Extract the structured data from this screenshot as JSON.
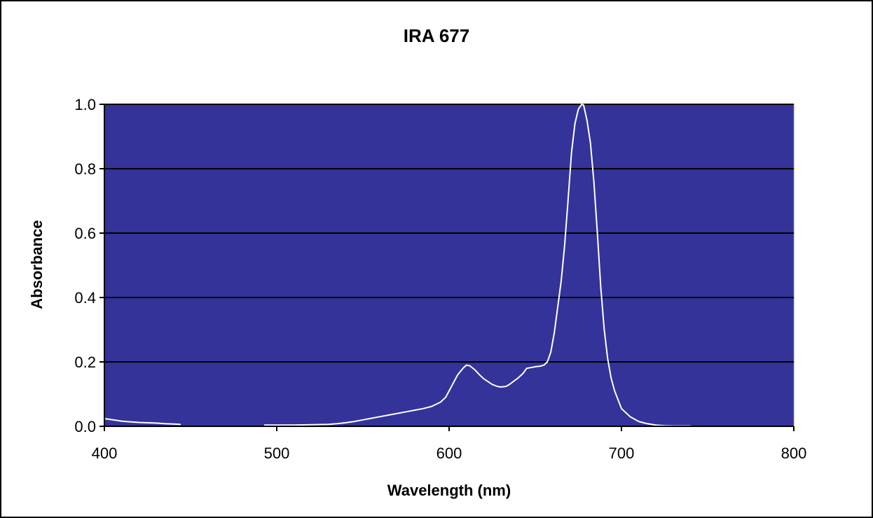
{
  "chart_data": {
    "type": "line",
    "title": "IRA 677",
    "xlabel": "Wavelength (nm)",
    "ylabel": "Absorbance",
    "xlim": [
      400,
      800
    ],
    "ylim": [
      0,
      1.0
    ],
    "x_ticks": [
      "400",
      "500",
      "600",
      "700",
      "800"
    ],
    "y_ticks": [
      "0.0",
      "0.2",
      "0.4",
      "0.6",
      "0.8",
      "1.0"
    ],
    "grid": "horizontal",
    "legend": "none",
    "colors": {
      "plot_background": "#333399",
      "line": "#ffffff",
      "gridline": "#000000"
    },
    "series": [
      {
        "segments": [
          {
            "x": [
              400,
              405,
              410,
              415,
              420,
              430,
              435,
              440,
              444
            ],
            "y": [
              0.024,
              0.02,
              0.016,
              0.014,
              0.012,
              0.01,
              0.008,
              0.007,
              0.006
            ]
          },
          {
            "x": [
              493,
              500,
              510,
              520,
              530,
              535,
              540,
              545,
              550,
              555,
              560,
              565,
              570,
              575,
              580,
              585,
              590,
              595,
              598,
              600,
              602,
              605,
              608,
              610,
              612,
              615,
              618,
              620,
              625,
              628,
              630,
              633,
              635,
              640,
              643,
              645,
              650,
              653,
              655,
              657,
              659,
              661,
              663,
              665,
              667,
              669,
              671,
              673,
              675,
              677,
              678,
              680,
              682,
              684,
              686,
              688,
              690,
              692,
              694,
              696,
              700,
              705,
              710,
              715,
              720,
              725,
              730,
              735,
              740
            ],
            "y": [
              0.004,
              0.004,
              0.004,
              0.005,
              0.006,
              0.008,
              0.011,
              0.015,
              0.02,
              0.025,
              0.03,
              0.035,
              0.04,
              0.045,
              0.05,
              0.055,
              0.062,
              0.075,
              0.09,
              0.11,
              0.13,
              0.16,
              0.18,
              0.19,
              0.188,
              0.175,
              0.158,
              0.148,
              0.13,
              0.124,
              0.122,
              0.124,
              0.13,
              0.15,
              0.165,
              0.18,
              0.185,
              0.187,
              0.19,
              0.2,
              0.23,
              0.29,
              0.37,
              0.45,
              0.56,
              0.7,
              0.85,
              0.94,
              0.985,
              1.0,
              0.998,
              0.95,
              0.88,
              0.76,
              0.6,
              0.43,
              0.3,
              0.21,
              0.15,
              0.11,
              0.055,
              0.03,
              0.015,
              0.008,
              0.004,
              0.002,
              0.001,
              0.001,
              0.001
            ]
          }
        ]
      }
    ]
  }
}
